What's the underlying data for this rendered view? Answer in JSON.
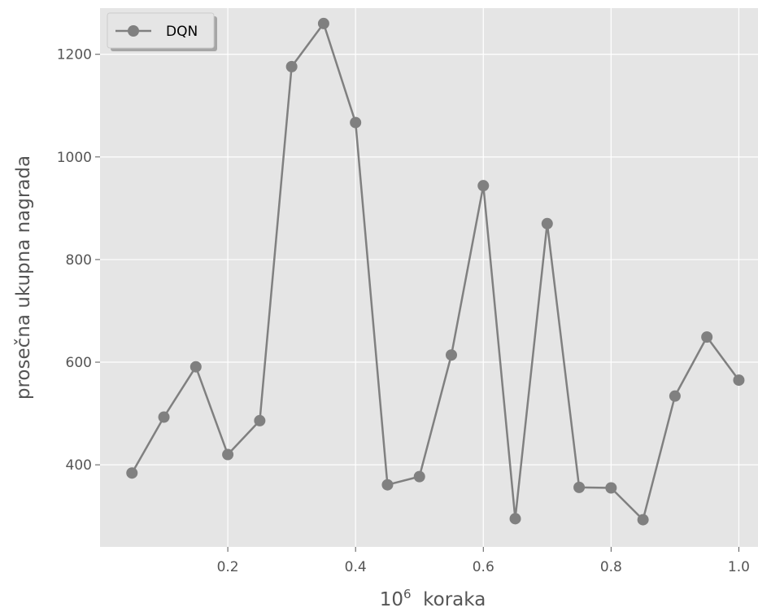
{
  "chart_data": {
    "type": "line",
    "title": "",
    "xlabel_base": "10",
    "xlabel_exp": "6",
    "xlabel_word": "koraka",
    "ylabel": "prosečna ukupna nagrada",
    "xlim": [
      0.0,
      1.03
    ],
    "ylim": [
      240,
      1290
    ],
    "x_ticks": [
      0.2,
      0.4,
      0.6,
      0.8,
      1.0
    ],
    "x_tick_labels": [
      "0.2",
      "0.4",
      "0.6",
      "0.8",
      "1.0"
    ],
    "y_ticks": [
      400,
      600,
      800,
      1000,
      1200
    ],
    "y_tick_labels": [
      "400",
      "600",
      "800",
      "1000",
      "1200"
    ],
    "grid": true,
    "legend_position": "top-left",
    "series": [
      {
        "name": "DQN",
        "color": "#808080",
        "marker": "circle",
        "x": [
          0.05,
          0.1,
          0.15,
          0.2,
          0.25,
          0.3,
          0.35,
          0.4,
          0.45,
          0.5,
          0.55,
          0.6,
          0.65,
          0.7,
          0.75,
          0.8,
          0.85,
          0.9,
          0.95,
          1.0
        ],
        "y": [
          384,
          493,
          591,
          420,
          486,
          1176,
          1260,
          1067,
          361,
          377,
          614,
          944,
          295,
          870,
          356,
          355,
          293,
          534,
          649,
          565
        ]
      }
    ]
  },
  "colors": {
    "plot_background": "#e5e5e5",
    "grid": "#ffffff",
    "line": "#808080"
  }
}
